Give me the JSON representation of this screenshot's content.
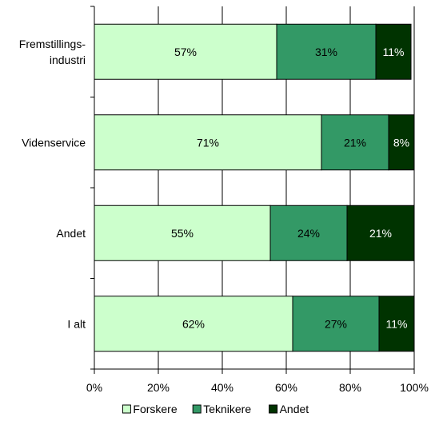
{
  "chart_data": {
    "type": "bar",
    "orientation": "horizontal",
    "stacked": true,
    "percent": true,
    "categories": [
      "Fremstillings-\nindustri",
      "Videnservice",
      "Andet",
      "I alt"
    ],
    "series": [
      {
        "name": "Forskere",
        "color": "#ccffcc",
        "label_color": "#000000",
        "values": [
          57,
          71,
          55,
          62
        ]
      },
      {
        "name": "Teknikere",
        "color": "#339966",
        "label_color": "#000000",
        "values": [
          31,
          21,
          24,
          27
        ]
      },
      {
        "name": "Andet",
        "color": "#003300",
        "label_color": "#ffffff",
        "values": [
          11,
          8,
          21,
          11
        ]
      }
    ],
    "data_labels": [
      [
        "57%",
        "71%",
        "55%",
        "62%"
      ],
      [
        "31%",
        "21%",
        "24%",
        "27%"
      ],
      [
        "11%",
        "8%",
        "21%",
        "11%"
      ]
    ],
    "x_ticks": [
      "0%",
      "20%",
      "40%",
      "60%",
      "80%",
      "100%"
    ],
    "xlim": [
      0,
      100
    ],
    "grid": true,
    "legend": "bottom",
    "title": "",
    "xlabel": "",
    "ylabel": ""
  }
}
